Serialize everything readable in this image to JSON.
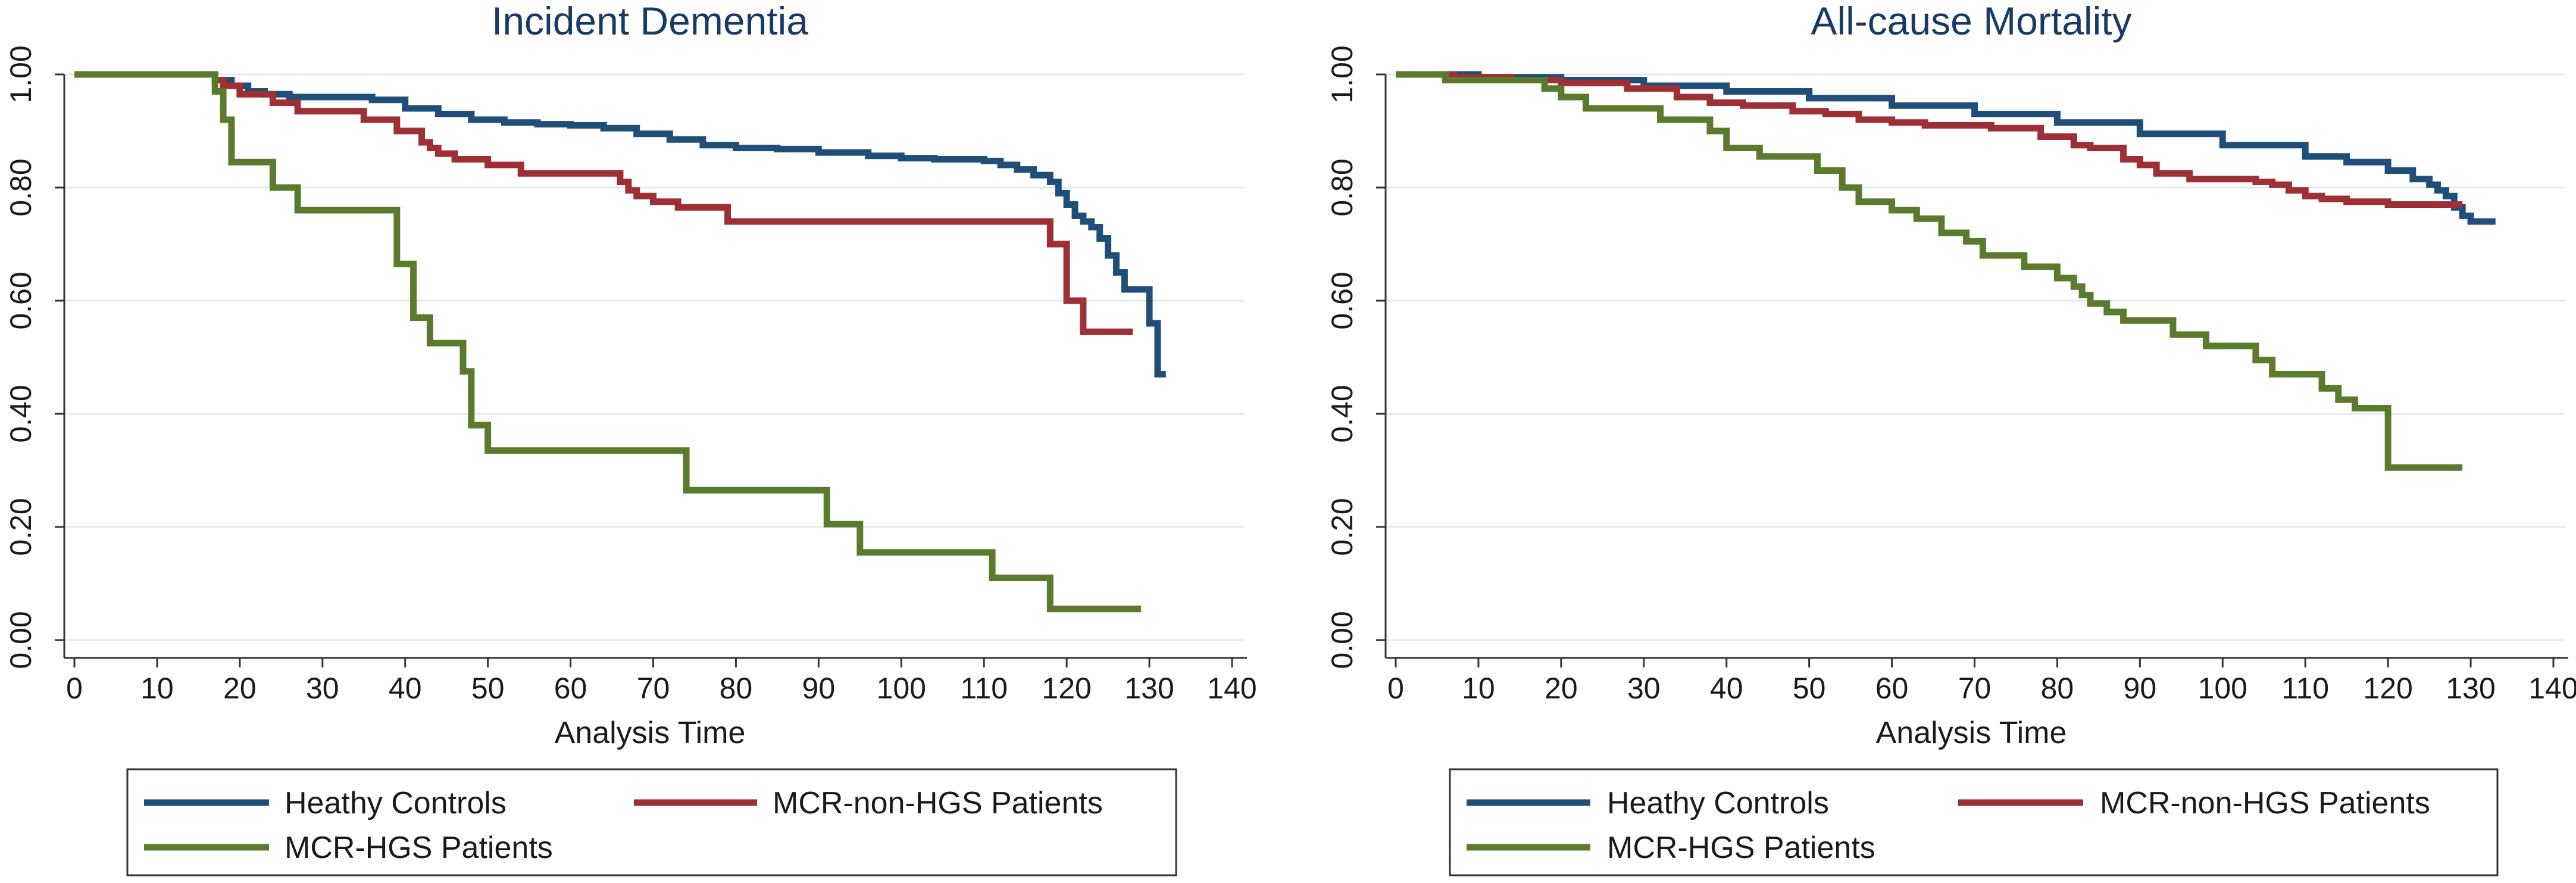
{
  "figure": {
    "panels": [
      {
        "title": "Incident Dementia",
        "xlabel": "Analysis Time",
        "legend": [
          "Heathy Controls",
          "MCR-non-HGS Patients",
          "MCR-HGS Patients"
        ]
      },
      {
        "title": "All-cause Mortality",
        "xlabel": "Analysis Time",
        "legend": [
          "Heathy Controls",
          "MCR-non-HGS Patients",
          "MCR-HGS Patients"
        ]
      }
    ]
  },
  "colors": {
    "healthy": "#1f4e79",
    "mcr_non_hgs": "#9e2f35",
    "mcr_hgs": "#5a7a2c",
    "grid": "#e3e8ec",
    "axis": "#333333"
  },
  "chart_data": [
    {
      "type": "line",
      "step": true,
      "title": "Incident Dementia",
      "xlabel": "Analysis Time",
      "ylabel": "",
      "xlim": [
        0,
        140
      ],
      "ylim": [
        0,
        1
      ],
      "xticks": [
        "0",
        "10",
        "20",
        "30",
        "40",
        "50",
        "60",
        "70",
        "80",
        "90",
        "100",
        "110",
        "120",
        "130",
        "140"
      ],
      "yticks": [
        "0.00",
        "0.20",
        "0.40",
        "0.60",
        "0.80",
        "1.00"
      ],
      "grid": true,
      "legend_position": "bottom",
      "series": [
        {
          "name": "Heathy Controls",
          "color": "#1f4e79",
          "x": [
            0,
            17,
            19,
            21,
            23,
            26,
            36,
            40,
            44,
            48,
            52,
            56,
            60,
            64,
            68,
            72,
            76,
            80,
            85,
            90,
            96,
            100,
            104,
            110,
            112,
            114,
            116,
            118,
            119,
            120,
            121,
            122,
            123,
            124,
            125,
            126,
            127,
            128,
            130,
            131,
            132
          ],
          "y": [
            1.0,
            0.99,
            0.98,
            0.97,
            0.965,
            0.96,
            0.955,
            0.94,
            0.93,
            0.92,
            0.915,
            0.912,
            0.91,
            0.905,
            0.895,
            0.885,
            0.875,
            0.87,
            0.868,
            0.862,
            0.856,
            0.852,
            0.85,
            0.847,
            0.84,
            0.832,
            0.822,
            0.81,
            0.79,
            0.77,
            0.75,
            0.74,
            0.73,
            0.71,
            0.68,
            0.65,
            0.62,
            0.62,
            0.56,
            0.47,
            0.47
          ]
        },
        {
          "name": "MCR-non-HGS Patients",
          "color": "#9e2f35",
          "x": [
            0,
            17,
            18,
            20,
            24,
            27,
            35,
            39,
            42,
            43,
            44,
            46,
            50,
            54,
            66,
            67,
            68,
            70,
            73,
            79,
            118,
            120,
            122,
            128
          ],
          "y": [
            1.0,
            0.99,
            0.98,
            0.965,
            0.95,
            0.935,
            0.92,
            0.9,
            0.88,
            0.87,
            0.86,
            0.85,
            0.84,
            0.825,
            0.81,
            0.795,
            0.785,
            0.775,
            0.765,
            0.74,
            0.7,
            0.6,
            0.545,
            0.545
          ]
        },
        {
          "name": "MCR-HGS Patients",
          "color": "#5a7a2c",
          "x": [
            0,
            16,
            17,
            18,
            19,
            24,
            27,
            39,
            41,
            43,
            47,
            48,
            50,
            74,
            91,
            95,
            111,
            118,
            129
          ],
          "y": [
            1.0,
            1.0,
            0.97,
            0.92,
            0.845,
            0.8,
            0.76,
            0.665,
            0.57,
            0.525,
            0.475,
            0.38,
            0.335,
            0.265,
            0.205,
            0.155,
            0.11,
            0.055,
            0.055
          ]
        }
      ]
    },
    {
      "type": "line",
      "step": true,
      "title": "All-cause Mortality",
      "xlabel": "Analysis Time",
      "ylabel": "",
      "xlim": [
        0,
        140
      ],
      "ylim": [
        0,
        1
      ],
      "xticks": [
        "0",
        "10",
        "20",
        "30",
        "40",
        "50",
        "60",
        "70",
        "80",
        "90",
        "100",
        "110",
        "120",
        "130",
        "140"
      ],
      "yticks": [
        "0.00",
        "0.20",
        "0.40",
        "0.60",
        "0.80",
        "1.00"
      ],
      "grid": true,
      "legend_position": "bottom",
      "series": [
        {
          "name": "Heathy Controls",
          "color": "#1f4e79",
          "x": [
            0,
            10,
            20,
            30,
            40,
            50,
            60,
            70,
            80,
            90,
            100,
            110,
            115,
            120,
            123,
            125,
            126,
            127,
            128,
            129,
            130,
            133
          ],
          "y": [
            1.0,
            0.995,
            0.99,
            0.98,
            0.97,
            0.958,
            0.945,
            0.93,
            0.915,
            0.895,
            0.875,
            0.855,
            0.845,
            0.83,
            0.815,
            0.805,
            0.795,
            0.785,
            0.765,
            0.75,
            0.74,
            0.74
          ]
        },
        {
          "name": "MCR-non-HGS Patients",
          "color": "#9e2f35",
          "x": [
            0,
            7,
            14,
            20,
            28,
            34,
            38,
            42,
            48,
            52,
            56,
            60,
            64,
            69,
            72,
            78,
            82,
            84,
            88,
            90,
            92,
            96,
            104,
            106,
            108,
            110,
            112,
            115,
            120,
            129
          ],
          "y": [
            1.0,
            0.995,
            0.99,
            0.985,
            0.975,
            0.96,
            0.95,
            0.945,
            0.935,
            0.93,
            0.92,
            0.915,
            0.91,
            0.91,
            0.905,
            0.89,
            0.875,
            0.87,
            0.85,
            0.84,
            0.825,
            0.815,
            0.81,
            0.805,
            0.795,
            0.785,
            0.78,
            0.775,
            0.77,
            0.77
          ]
        },
        {
          "name": "MCR-HGS Patients",
          "color": "#5a7a2c",
          "x": [
            0,
            6,
            18,
            20,
            23,
            32,
            38,
            40,
            44,
            51,
            54,
            56,
            60,
            63,
            66,
            69,
            71,
            76,
            80,
            82,
            83,
            84,
            86,
            88,
            90,
            94,
            98,
            104,
            106,
            108,
            112,
            114,
            116,
            120,
            129
          ],
          "y": [
            1.0,
            0.99,
            0.975,
            0.96,
            0.94,
            0.92,
            0.9,
            0.87,
            0.855,
            0.83,
            0.8,
            0.775,
            0.76,
            0.745,
            0.72,
            0.705,
            0.68,
            0.66,
            0.64,
            0.625,
            0.61,
            0.595,
            0.58,
            0.565,
            0.565,
            0.54,
            0.52,
            0.495,
            0.47,
            0.47,
            0.445,
            0.425,
            0.41,
            0.305,
            0.305
          ]
        }
      ]
    }
  ]
}
